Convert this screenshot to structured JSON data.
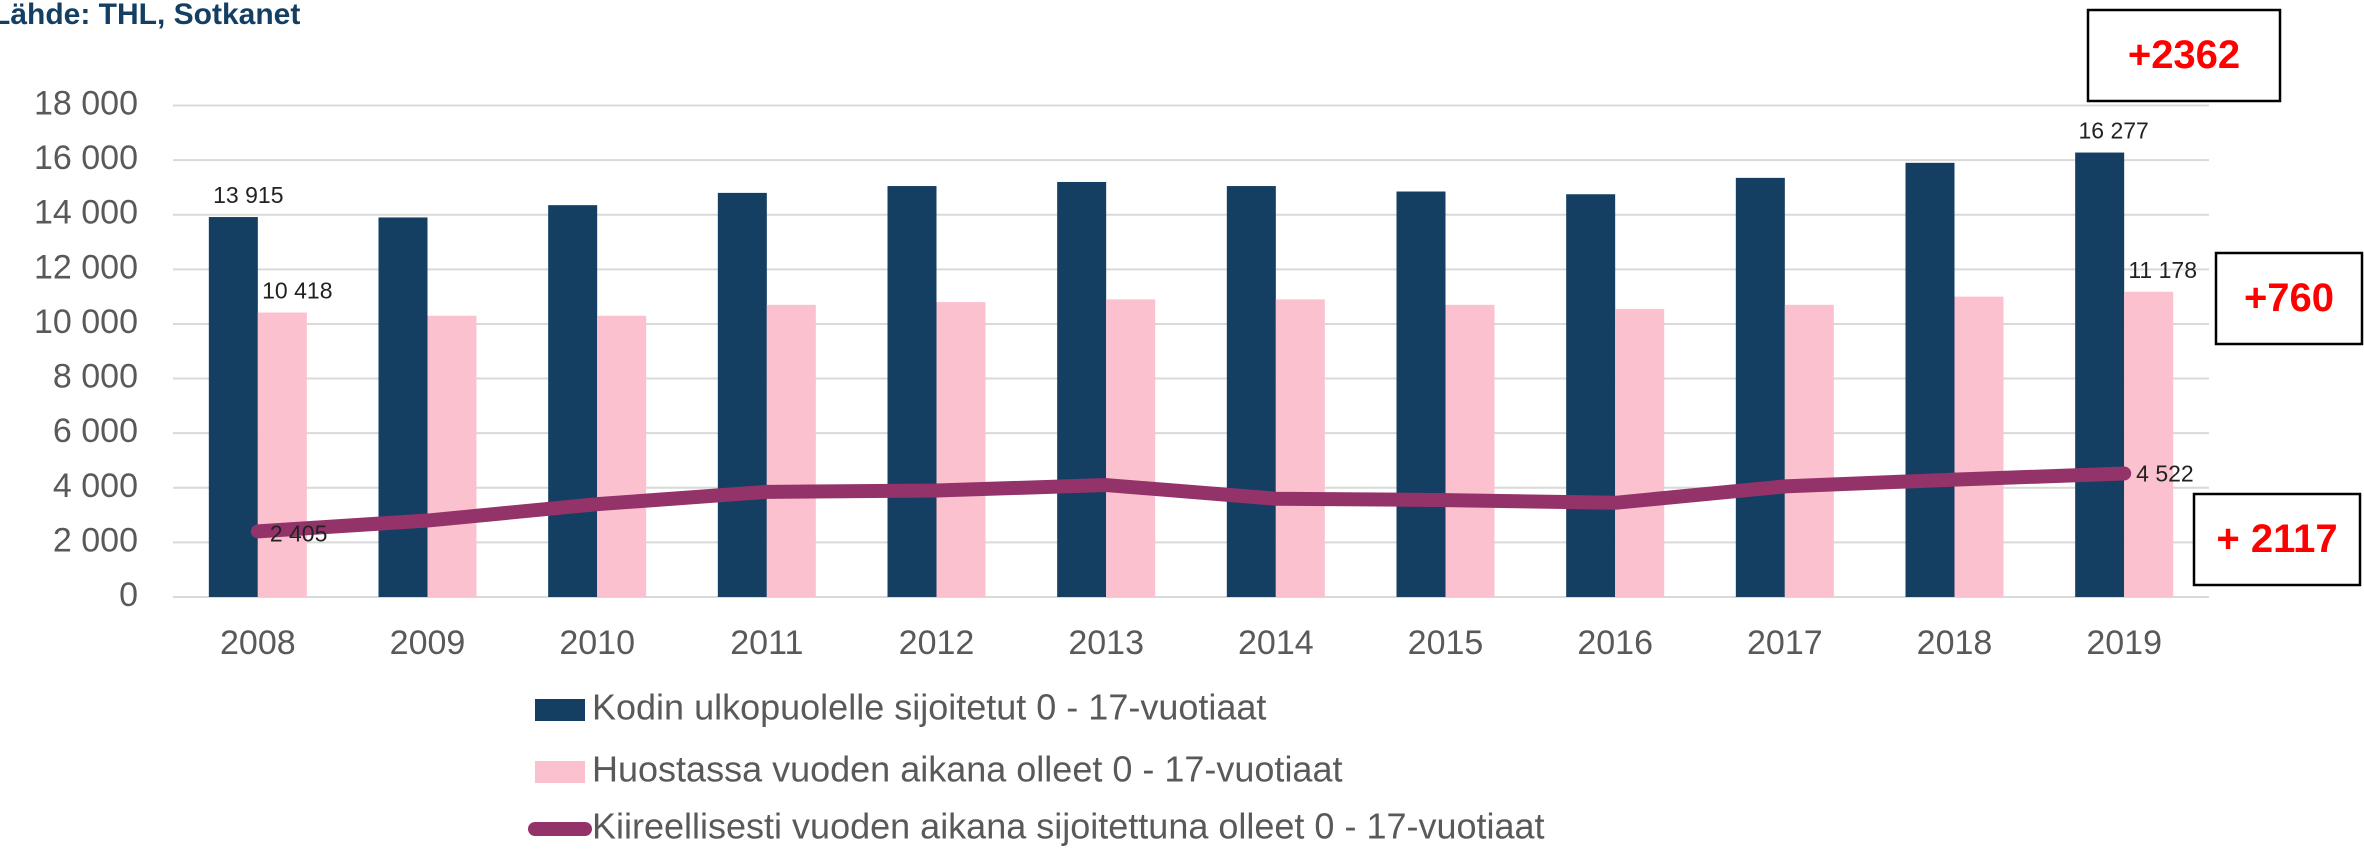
{
  "chart_data": {
    "type": "bar",
    "source": "Lähde: THL, Sotkanet",
    "categories": [
      "2008",
      "2009",
      "2010",
      "2011",
      "2012",
      "2013",
      "2014",
      "2015",
      "2016",
      "2017",
      "2018",
      "2019"
    ],
    "series": [
      {
        "name": "Kodin ulkopuolelle sijoitetut 0 - 17-vuotiaat",
        "type": "bar",
        "color": "#143f62",
        "values": [
          13915,
          13900,
          14350,
          14800,
          15050,
          15200,
          15050,
          14850,
          14750,
          15350,
          15900,
          16277
        ],
        "value_labels": [
          "13 915",
          null,
          null,
          null,
          null,
          null,
          null,
          null,
          null,
          null,
          null,
          "16 277"
        ]
      },
      {
        "name": "Huostassa vuoden aikana olleet 0 - 17-vuotiaat",
        "type": "bar",
        "color": "#fcc1cf",
        "values": [
          10418,
          10300,
          10300,
          10700,
          10800,
          10900,
          10900,
          10700,
          10550,
          10700,
          11000,
          11178
        ],
        "value_labels": [
          "10 418",
          null,
          null,
          null,
          null,
          null,
          null,
          null,
          null,
          null,
          null,
          "11 178"
        ]
      },
      {
        "name": "Kiireellisesti vuoden aikana sijoitettuna olleet 0 - 17-vuotiaat",
        "type": "line",
        "color": "#94336a",
        "values": [
          2405,
          2800,
          3400,
          3850,
          3900,
          4100,
          3600,
          3550,
          3450,
          4050,
          4300,
          4522
        ],
        "value_labels": [
          "2 405",
          null,
          null,
          null,
          null,
          null,
          null,
          null,
          null,
          null,
          null,
          "4 522"
        ]
      }
    ],
    "ylim": [
      0,
      18000
    ],
    "yticks": [
      0,
      {
        "value": 2000,
        "label": "2 000"
      },
      {
        "value": 4000,
        "label": "4 000"
      },
      {
        "value": 6000,
        "label": "6 000"
      },
      {
        "value": 8000,
        "label": "8 000"
      },
      {
        "value": 10000,
        "label": "10 000"
      },
      {
        "value": 12000,
        "label": "12 000"
      },
      {
        "value": 14000,
        "label": "14 000"
      },
      {
        "value": 16000,
        "label": "16 000"
      },
      {
        "value": 18000,
        "label": "18 000"
      }
    ],
    "grid": true,
    "annotations": [
      "+2362",
      "+760",
      "+ 2117"
    ]
  }
}
